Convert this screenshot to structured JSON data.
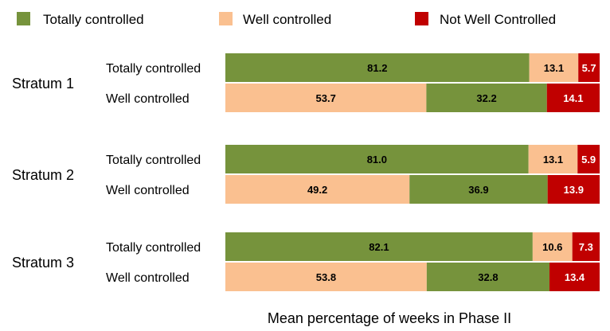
{
  "chart_data": {
    "type": "bar",
    "orientation": "horizontal",
    "stacked": true,
    "xlabel": "Mean percentage of weeks in Phase II",
    "xlim": [
      0,
      100
    ],
    "legend_position": "top",
    "legend": [
      {
        "name": "Totally controlled",
        "color": "#76933c"
      },
      {
        "name": "Well controlled",
        "color": "#fac090"
      },
      {
        "name": "Not Well Controlled",
        "color": "#c00000"
      }
    ],
    "groups": [
      {
        "label": "Stratum 1",
        "rows": [
          {
            "label": "Totally controlled",
            "segments": [
              {
                "series": "Totally controlled",
                "value": 81.2,
                "label": "81.2"
              },
              {
                "series": "Well controlled",
                "value": 13.1,
                "label": "13.1"
              },
              {
                "series": "Not Well Controlled",
                "value": 5.7,
                "label": "5.7"
              }
            ]
          },
          {
            "label": "Well controlled",
            "segments": [
              {
                "series": "Well controlled",
                "value": 53.7,
                "label": "53.7"
              },
              {
                "series": "Totally controlled",
                "value": 32.2,
                "label": "32.2"
              },
              {
                "series": "Not Well Controlled",
                "value": 14.1,
                "label": "14.1"
              }
            ]
          }
        ]
      },
      {
        "label": "Stratum 2",
        "rows": [
          {
            "label": "Totally controlled",
            "segments": [
              {
                "series": "Totally controlled",
                "value": 81.0,
                "label": "81.0"
              },
              {
                "series": "Well controlled",
                "value": 13.1,
                "label": "13.1"
              },
              {
                "series": "Not Well Controlled",
                "value": 5.9,
                "label": "5.9"
              }
            ]
          },
          {
            "label": "Well controlled",
            "segments": [
              {
                "series": "Well controlled",
                "value": 49.2,
                "label": "49.2"
              },
              {
                "series": "Totally controlled",
                "value": 36.9,
                "label": "36.9"
              },
              {
                "series": "Not Well Controlled",
                "value": 13.9,
                "label": "13.9"
              }
            ]
          }
        ]
      },
      {
        "label": "Stratum 3",
        "rows": [
          {
            "label": "Totally controlled",
            "segments": [
              {
                "series": "Totally controlled",
                "value": 82.1,
                "label": "82.1"
              },
              {
                "series": "Well controlled",
                "value": 10.6,
                "label": "10.6"
              },
              {
                "series": "Not Well Controlled",
                "value": 7.3,
                "label": "7.3"
              }
            ]
          },
          {
            "label": "Well controlled",
            "segments": [
              {
                "series": "Well controlled",
                "value": 53.8,
                "label": "53.8"
              },
              {
                "series": "Totally controlled",
                "value": 32.8,
                "label": "32.8"
              },
              {
                "series": "Not Well Controlled",
                "value": 13.4,
                "label": "13.4"
              }
            ]
          }
        ]
      }
    ]
  }
}
